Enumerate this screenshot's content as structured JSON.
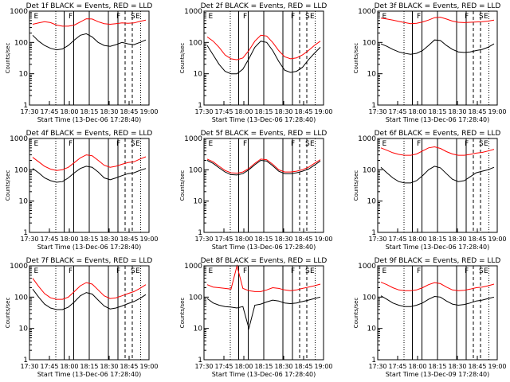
{
  "chart_data": [
    {
      "type": "line",
      "title": "Det 1f BLACK = Events, RED = LLD",
      "xlabel": "Start Time (13-Dec-06 17:28:40)",
      "ylabel": "Counts/sec",
      "xticks": [
        "17:30",
        "17:45",
        "18:00",
        "18:15",
        "18:30",
        "18:45",
        "19:00"
      ],
      "yticks": [
        "1",
        "10",
        "100",
        "1000"
      ],
      "ylim": [
        1,
        1000
      ],
      "yscale": "log",
      "series": [
        {
          "color": "#ff0000",
          "values": [
            380,
            420,
            460,
            430,
            360,
            330,
            330,
            360,
            450,
            570,
            560,
            460,
            400,
            380,
            400,
            420,
            410,
            420,
            470,
            520
          ]
        },
        {
          "color": "#000000",
          "values": [
            170,
            110,
            80,
            65,
            58,
            62,
            80,
            120,
            170,
            190,
            150,
            100,
            80,
            75,
            85,
            100,
            90,
            85,
            100,
            120
          ]
        }
      ]
    },
    {
      "type": "line",
      "title": "Det 2f BLACK = Events, RED = LLD",
      "xlabel": "Start Time (13-Dec-06 17:28:40)",
      "ylabel": "Counts/sec",
      "xticks": [
        "17:30",
        "17:45",
        "18:00",
        "18:15",
        "18:30",
        "18:45",
        "19:00"
      ],
      "yticks": [
        "1",
        "10",
        "100",
        "1000"
      ],
      "ylim": [
        1,
        1000
      ],
      "yscale": "log",
      "series": [
        {
          "color": "#ff0000",
          "values": [
            150,
            110,
            70,
            40,
            30,
            28,
            32,
            55,
            110,
            170,
            160,
            100,
            55,
            35,
            30,
            32,
            40,
            55,
            80,
            110
          ]
        },
        {
          "color": "#000000",
          "values": [
            80,
            40,
            20,
            12,
            10,
            10,
            14,
            30,
            70,
            110,
            100,
            55,
            25,
            13,
            11,
            12,
            16,
            28,
            45,
            70
          ]
        }
      ]
    },
    {
      "type": "line",
      "title": "Det 3f BLACK = Events, RED = LLD",
      "xlabel": "Start Time (13-Dec-06 17:28:40)",
      "ylabel": "Counts/sec",
      "xticks": [
        "17:30",
        "17:45",
        "18:00",
        "18:15",
        "18:30",
        "18:45",
        "19:00"
      ],
      "yticks": [
        "1",
        "10",
        "100",
        "1000"
      ],
      "ylim": [
        1,
        1000
      ],
      "yscale": "log",
      "series": [
        {
          "color": "#ff0000",
          "values": [
            600,
            560,
            520,
            470,
            430,
            400,
            410,
            450,
            520,
            620,
            640,
            560,
            480,
            440,
            430,
            440,
            450,
            460,
            480,
            520
          ]
        },
        {
          "color": "#000000",
          "values": [
            90,
            75,
            60,
            50,
            45,
            42,
            45,
            55,
            80,
            120,
            115,
            80,
            60,
            50,
            48,
            50,
            55,
            60,
            70,
            90
          ]
        }
      ]
    },
    {
      "type": "line",
      "title": "Det 4f BLACK = Events, RED = LLD",
      "xlabel": "Start Time (13-Dec-06 17:28:40)",
      "ylabel": "Counts/sec",
      "xticks": [
        "17:30",
        "17:45",
        "18:00",
        "18:15",
        "18:30",
        "18:45",
        "19:00"
      ],
      "yticks": [
        "1",
        "10",
        "100",
        "1000"
      ],
      "ylim": [
        1,
        1000
      ],
      "yscale": "log",
      "series": [
        {
          "color": "#ff0000",
          "values": [
            250,
            180,
            130,
            105,
            95,
            100,
            120,
            170,
            240,
            300,
            280,
            200,
            140,
            120,
            130,
            150,
            170,
            180,
            220,
            260
          ]
        },
        {
          "color": "#000000",
          "values": [
            110,
            80,
            55,
            45,
            40,
            42,
            55,
            80,
            110,
            130,
            120,
            85,
            55,
            48,
            55,
            65,
            75,
            80,
            95,
            110
          ]
        }
      ]
    },
    {
      "type": "line",
      "title": "Det 5f BLACK = Events, RED = LLD",
      "xlabel": "Start Time (13-Dec-06 17:28:40)",
      "ylabel": "Counts/sec",
      "xticks": [
        "17:30",
        "17:45",
        "18:00",
        "18:15",
        "18:30",
        "18:45",
        "19:00"
      ],
      "yticks": [
        "1",
        "10",
        "100",
        "1000"
      ],
      "ylim": [
        1,
        1000
      ],
      "yscale": "log",
      "series": [
        {
          "color": "#ff0000",
          "values": [
            220,
            180,
            130,
            95,
            80,
            78,
            85,
            110,
            160,
            220,
            210,
            150,
            100,
            85,
            85,
            90,
            100,
            120,
            160,
            210
          ]
        },
        {
          "color": "#000000",
          "values": [
            200,
            160,
            115,
            85,
            70,
            68,
            75,
            100,
            145,
            200,
            190,
            135,
            90,
            75,
            75,
            80,
            90,
            105,
            140,
            190
          ]
        }
      ]
    },
    {
      "type": "line",
      "title": "Det 6f BLACK = Events, RED = LLD",
      "xlabel": "Start Time (13-Dec-06 17:28:40)",
      "ylabel": "Counts/sec",
      "xticks": [
        "17:30",
        "17:45",
        "18:00",
        "18:15",
        "18:30",
        "18:45",
        "19:00"
      ],
      "yticks": [
        "1",
        "10",
        "100",
        "1000"
      ],
      "ylim": [
        1,
        1000
      ],
      "yscale": "log",
      "series": [
        {
          "color": "#ff0000",
          "values": [
            500,
            420,
            350,
            310,
            290,
            290,
            320,
            400,
            500,
            540,
            480,
            380,
            320,
            290,
            290,
            310,
            340,
            360,
            400,
            450
          ]
        },
        {
          "color": "#000000",
          "values": [
            120,
            80,
            55,
            42,
            38,
            38,
            45,
            65,
            100,
            130,
            115,
            75,
            50,
            42,
            45,
            60,
            80,
            90,
            100,
            120
          ]
        }
      ]
    },
    {
      "type": "line",
      "title": "Det 7f BLACK = Events, RED = LLD",
      "xlabel": "Start Time (13-Dec-06 17:28:40)",
      "ylabel": "Counts/sec",
      "xticks": [
        "17:30",
        "17:45",
        "18:00",
        "18:15",
        "18:30",
        "18:45",
        "19:00"
      ],
      "yticks": [
        "1",
        "10",
        "100",
        "1000"
      ],
      "ylim": [
        1,
        1000
      ],
      "yscale": "log",
      "series": [
        {
          "color": "#ff0000",
          "values": [
            400,
            220,
            130,
            95,
            85,
            85,
            100,
            150,
            230,
            290,
            260,
            170,
            110,
            90,
            95,
            110,
            130,
            150,
            190,
            250
          ]
        },
        {
          "color": "#000000",
          "values": [
            180,
            100,
            60,
            45,
            40,
            40,
            48,
            70,
            110,
            140,
            125,
            80,
            52,
            42,
            45,
            52,
            62,
            72,
            90,
            120
          ]
        }
      ]
    },
    {
      "type": "line",
      "title": "Det 8f BLACK = Events, RED = LLD",
      "xlabel": "Start Time (13-Dec-06 17:28:40)",
      "ylabel": "Counts/sec",
      "xticks": [
        "17:30",
        "17:45",
        "18:00",
        "18:15",
        "18:30",
        "18:45",
        "19:00"
      ],
      "yticks": [
        "1",
        "10",
        "100",
        "1000"
      ],
      "ylim": [
        1,
        1000
      ],
      "yscale": "log",
      "series": [
        {
          "color": "#ff0000",
          "values": [
            250,
            210,
            200,
            190,
            180,
            1000,
            190,
            160,
            150,
            150,
            170,
            200,
            190,
            170,
            160,
            170,
            190,
            210,
            230,
            260
          ]
        },
        {
          "color": "#000000",
          "values": [
            90,
            65,
            55,
            50,
            48,
            45,
            50,
            10,
            55,
            60,
            70,
            80,
            75,
            65,
            62,
            65,
            72,
            80,
            90,
            100
          ]
        }
      ]
    },
    {
      "type": "line",
      "title": "Det 9f BLACK = Events, RED = LLD",
      "xlabel": "Start Time (13-Dec-09 17:28:40)",
      "ylabel": "Counts/sec",
      "xticks": [
        "17:30",
        "17:45",
        "18:00",
        "18:15",
        "18:30",
        "18:45",
        "19:00"
      ],
      "yticks": [
        "1",
        "10",
        "100",
        "1000"
      ],
      "ylim": [
        1,
        1000
      ],
      "yscale": "log",
      "series": [
        {
          "color": "#ff0000",
          "values": [
            300,
            250,
            200,
            170,
            160,
            160,
            170,
            200,
            250,
            290,
            270,
            210,
            170,
            160,
            165,
            180,
            200,
            210,
            230,
            260
          ]
        },
        {
          "color": "#000000",
          "values": [
            110,
            85,
            65,
            55,
            50,
            50,
            55,
            65,
            85,
            105,
            100,
            75,
            60,
            55,
            58,
            65,
            75,
            80,
            90,
            100
          ]
        }
      ]
    }
  ]
}
